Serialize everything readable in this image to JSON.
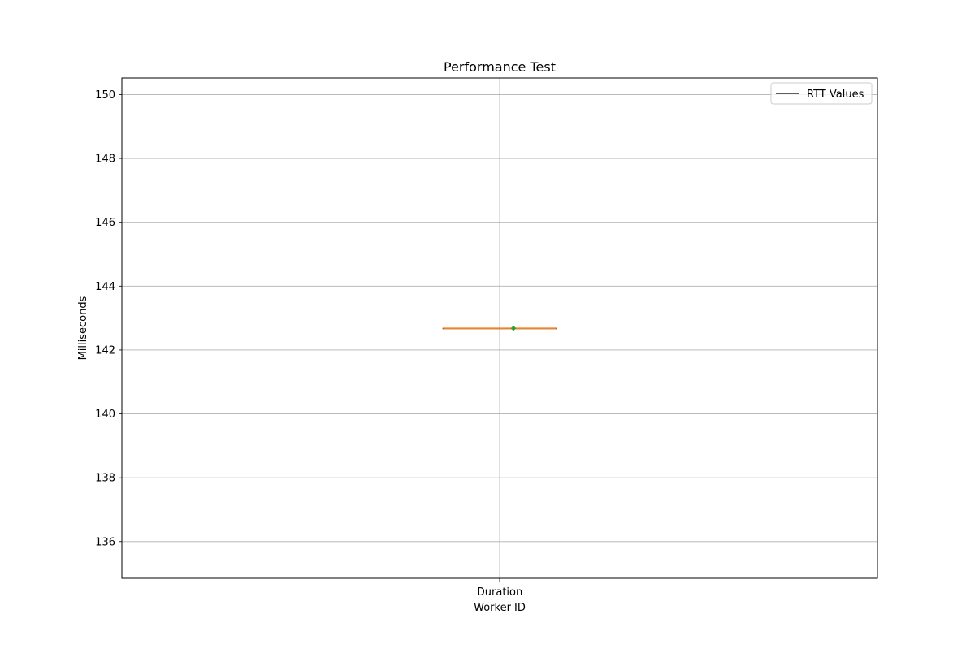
{
  "chart_data": {
    "type": "box",
    "title": "Performance Test",
    "xlabel": "Worker ID",
    "ylabel": "Milliseconds",
    "categories": [
      "Duration"
    ],
    "series": [
      {
        "name": "RTT Values",
        "boxes": [
          {
            "category": "Duration",
            "min": 142.68,
            "q1": 142.68,
            "median": 142.68,
            "q3": 142.68,
            "max": 142.68,
            "mean": 142.68
          }
        ]
      }
    ],
    "ylim": [
      134.85,
      150.52
    ],
    "yticks": [
      "136",
      "138",
      "140",
      "142",
      "144",
      "146",
      "148",
      "150"
    ],
    "grid": true,
    "legend": {
      "position": "top-right",
      "entries": [
        "RTT Values"
      ]
    },
    "colors": {
      "box": "#000000",
      "median": "#ff7f0e",
      "mean": "#2ca02c",
      "grid": "#b0b0b0",
      "axes": "#000000"
    }
  }
}
